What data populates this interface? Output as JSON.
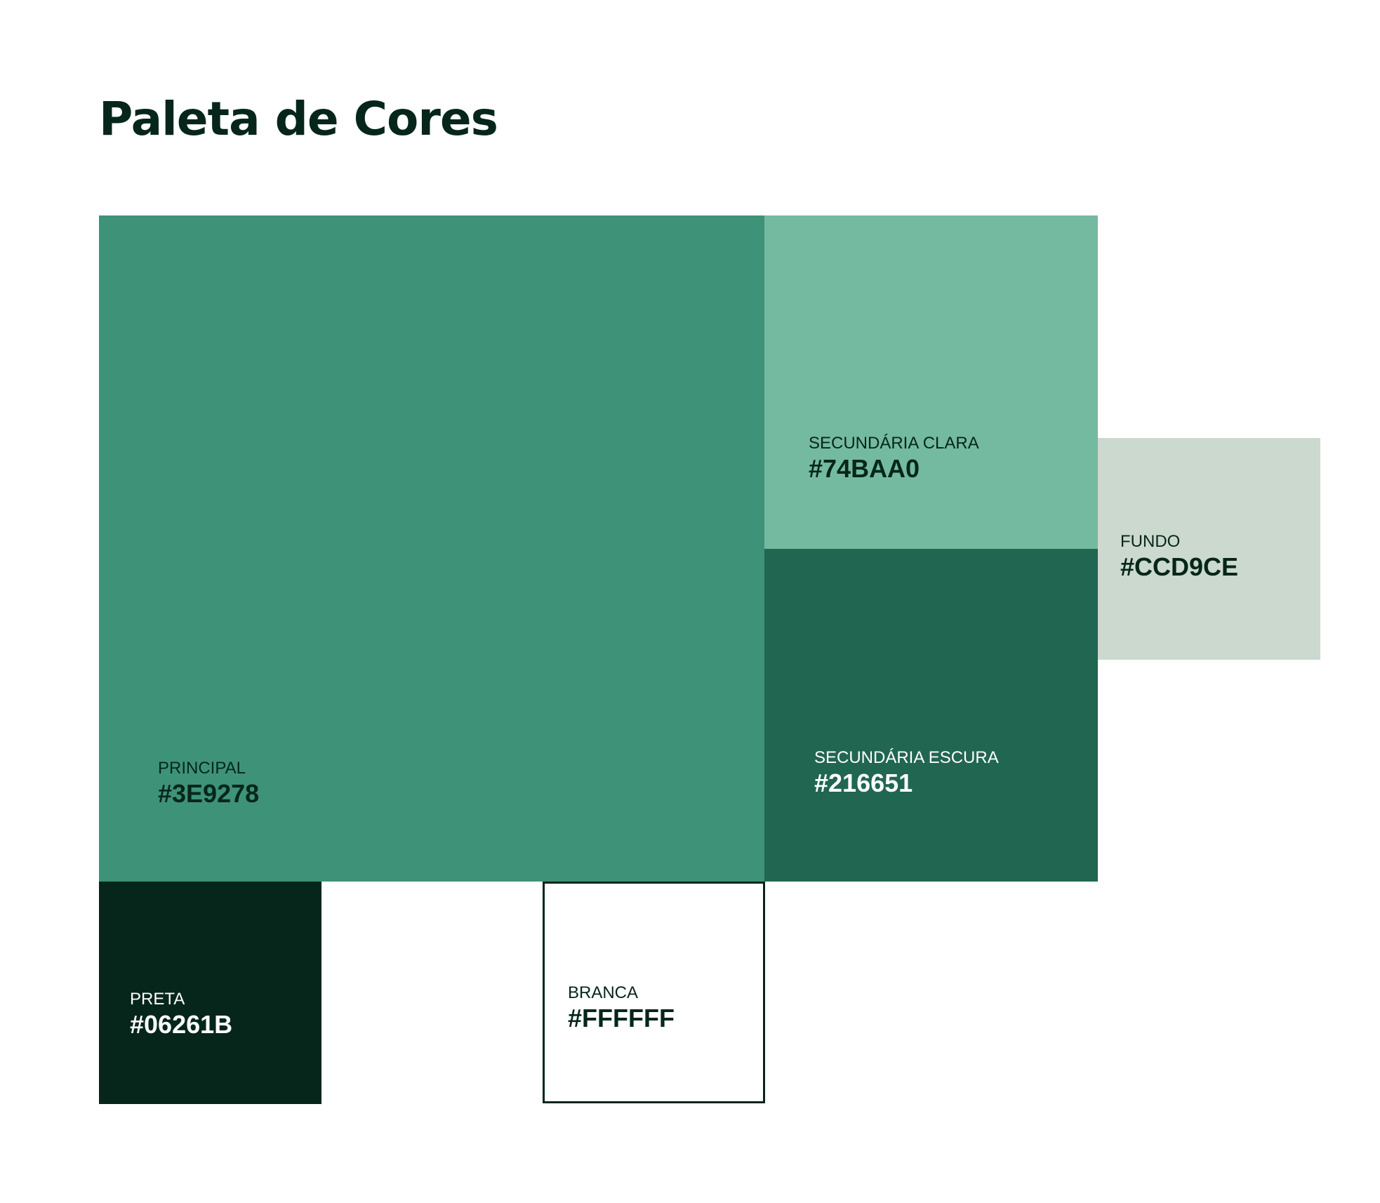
{
  "title": "Paleta de Cores",
  "swatches": [
    {
      "id": "principal",
      "label": "PRINCIPAL",
      "hex": "#3E9278",
      "color": "#3E9278",
      "text_color": "#06261B"
    },
    {
      "id": "secundaria-clara",
      "label": "SECUNDÁRIA CLARA",
      "hex": "#74BAA0",
      "color": "#74BAA0",
      "text_color": "#06261B"
    },
    {
      "id": "secundaria-escura",
      "label": "SECUNDÁRIA ESCURA",
      "hex": "#216651",
      "color": "#216651",
      "text_color": "#FFFFFF"
    },
    {
      "id": "fundo",
      "label": "FUNDO",
      "hex": "#CCD9CE",
      "color": "#CCD9CE",
      "text_color": "#06261B"
    },
    {
      "id": "preta",
      "label": "PRETA",
      "hex": "#06261B",
      "color": "#06261B",
      "text_color": "#FFFFFF"
    },
    {
      "id": "branca",
      "label": "BRANCA",
      "hex": "#FFFFFF",
      "color": "#FFFFFF",
      "text_color": "#06261B",
      "border": "#06261B"
    }
  ]
}
